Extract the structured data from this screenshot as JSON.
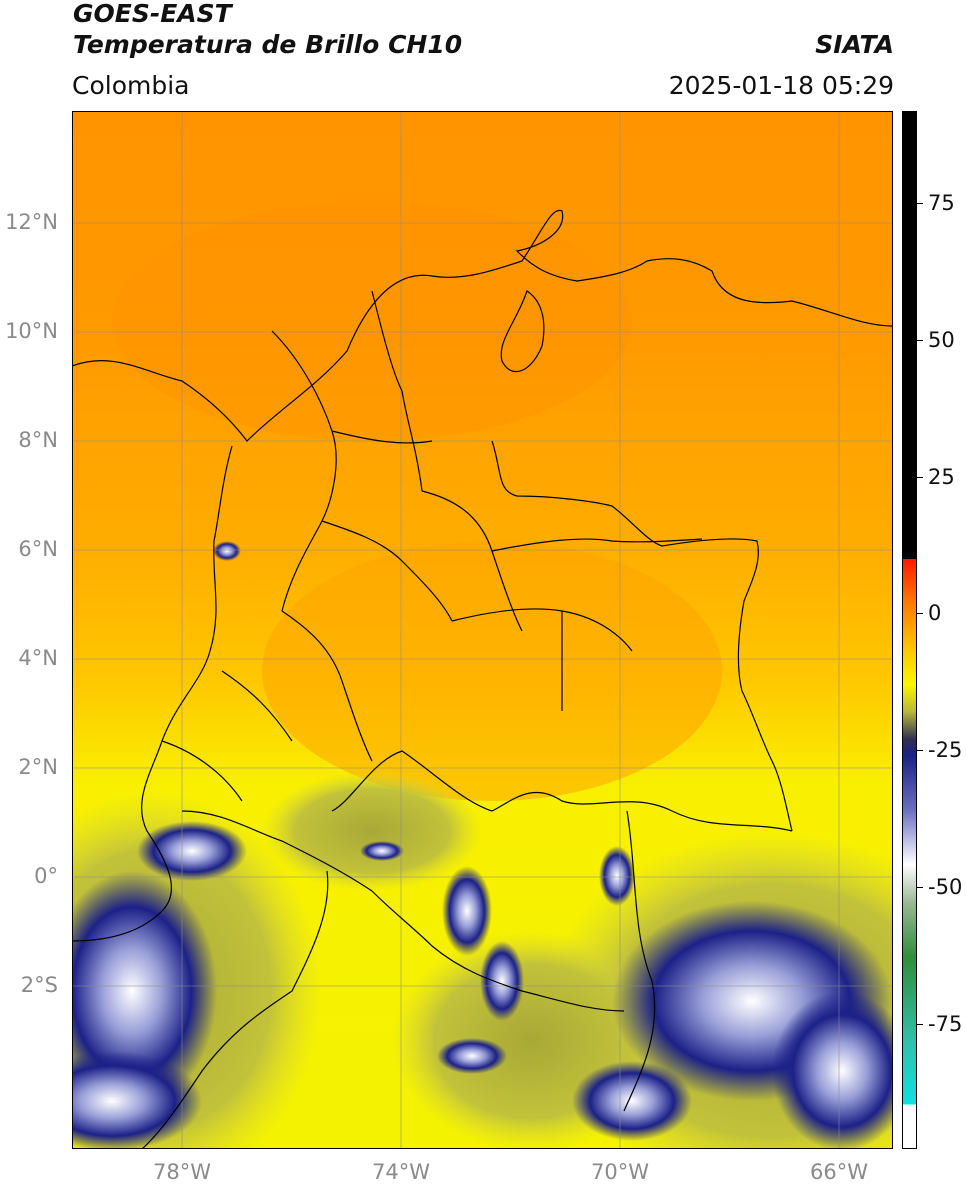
{
  "header": {
    "title_line1": "GOES-EAST",
    "title_line2": "Temperatura de Brillo CH10",
    "agency": "SIATA",
    "region": "Colombia",
    "datetime": "2025-01-18 05:29"
  },
  "map": {
    "extent": {
      "lon": [
        -80,
        -65
      ],
      "lat": [
        -5,
        14
      ]
    },
    "lat_labels": [
      "12°N",
      "10°N",
      "8°N",
      "6°N",
      "4°N",
      "2°N",
      "0°",
      "2°S"
    ],
    "lon_labels": [
      "78°W",
      "74°W",
      "70°W",
      "66°W"
    ],
    "colors": {
      "north_orange": "#ff9a00",
      "central_orange": "#ffb000",
      "yellow": "#f6f400",
      "olive": "#b9b83a",
      "navy": "#1c2188",
      "boundary": "#000000"
    }
  },
  "colorbar": {
    "range": [
      -100,
      90
    ],
    "ticks": [
      "75",
      "50",
      "25",
      "0",
      "-25",
      "-50",
      "-75"
    ],
    "tick_values": [
      75,
      50,
      25,
      0,
      -25,
      -50,
      -75
    ]
  }
}
